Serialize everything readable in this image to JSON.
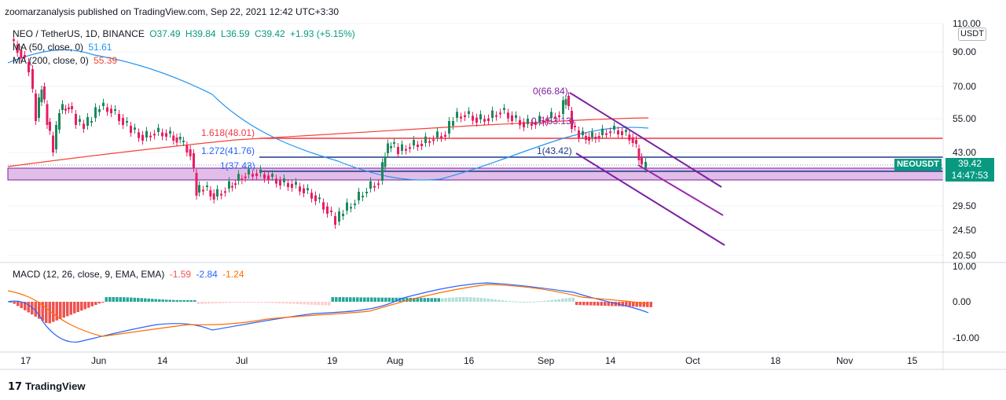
{
  "publisher_line": "zoomarzanalysis published on TradingView.com, Sep 22, 2021 12:42 UTC+3:30",
  "legend": {
    "symbol": "NEO / TetherUS, 1D, BINANCE",
    "ohlc": {
      "o": "O37.49",
      "h": "H39.84",
      "l": "L36.59",
      "c": "C39.42",
      "chg": "+1.93 (+5.15%)"
    },
    "ma50": {
      "label": "MA (50, close, 0)",
      "value": "51.61"
    },
    "ma200": {
      "label": "MA (200, close, 0)",
      "value": "55.39"
    },
    "macd": {
      "label": "MACD (12, 26, close, 9, EMA, EMA)",
      "hist": "-1.59",
      "macd": "-2.84",
      "signal": "-1.24"
    }
  },
  "price_axis": {
    "unit": "USDT",
    "ticks": [
      "110.00",
      "90.00",
      "70.00",
      "55.00",
      "43.00",
      "29.50",
      "24.50",
      "20.50"
    ],
    "tick_values": [
      110,
      90,
      70,
      55,
      43,
      29.5,
      24.5,
      20.5
    ],
    "current_price": "39.42",
    "countdown": "14:47:53",
    "symbol_tag": "NEOUSDT"
  },
  "macd_axis": {
    "ticks": [
      "10.00",
      "0.00",
      "-10.00"
    ],
    "tick_values": [
      10,
      0,
      -10
    ]
  },
  "time_axis": {
    "labels": [
      "17",
      "Jun",
      "14",
      "Jul",
      "19",
      "Aug",
      "16",
      "Sep",
      "14",
      "Oct",
      "18",
      "Nov",
      "15"
    ]
  },
  "annotations": {
    "fib": [
      {
        "label": "0(66.84)",
        "value": 66.84
      },
      {
        "label": "0.5(53.13)",
        "value": 53.13
      },
      {
        "label": "1(43.42)",
        "value": 43.42
      },
      {
        "label": "1.618(48.01)",
        "value": 48.01
      },
      {
        "label": "1.272(41.76)",
        "value": 41.76
      },
      {
        "label": "1(37.43)",
        "value": 37.43
      }
    ]
  },
  "footer": {
    "brand": "TradingView"
  },
  "colors": {
    "up": "#26a69a",
    "down": "#ef5350",
    "candle_up": "#1b8a5a",
    "candle_down": "#e91e63",
    "ma50": "#2196f3",
    "ma200": "#f44336",
    "macd": "#2962ff",
    "signal": "#ff6d00",
    "channel": "#7b1fa2",
    "zone": "#e1bee7",
    "level_blue": "#1e3a8a",
    "level_red": "#f23645"
  },
  "chart_data": {
    "type": "candlestick",
    "price_series_sample": [
      {
        "date": "May 17",
        "close": 90
      },
      {
        "date": "Jun 1",
        "close": 62
      },
      {
        "date": "Jun 14",
        "close": 52
      },
      {
        "date": "Jun 22",
        "close": 30
      },
      {
        "date": "Jul 1",
        "close": 36
      },
      {
        "date": "Jul 19",
        "close": 25
      },
      {
        "date": "Jul 31",
        "close": 42
      },
      {
        "date": "Aug 16",
        "close": 55
      },
      {
        "date": "Sep 5",
        "close": 66.84
      },
      {
        "date": "Sep 14",
        "close": 50
      },
      {
        "date": "Sep 21",
        "close": 39.42
      }
    ],
    "ma50_current": 51.61,
    "ma200_current": 55.39,
    "macd_current": {
      "histogram": -1.59,
      "macd": -2.84,
      "signal": -1.24
    }
  }
}
